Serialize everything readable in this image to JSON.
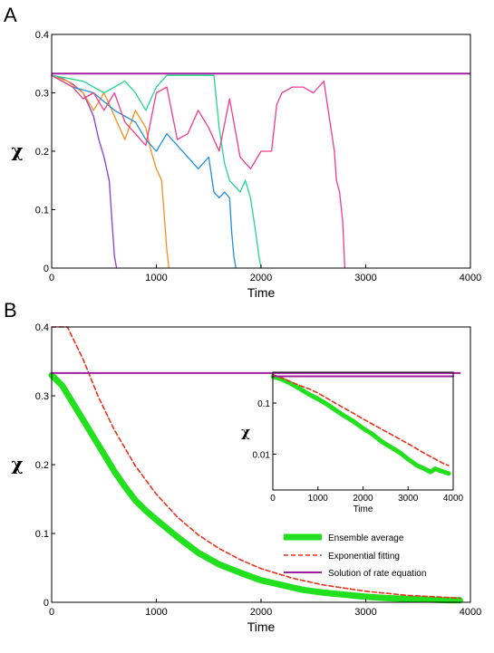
{
  "chart_data": [
    {
      "panel": "A",
      "type": "line",
      "xlabel": "Time",
      "ylabel": "χ",
      "xlim": [
        0,
        4000
      ],
      "ylim": [
        0,
        0.4
      ],
      "xticks": [
        0,
        1000,
        2000,
        3000,
        4000
      ],
      "yticks": [
        0,
        0.1,
        0.2,
        0.3,
        0.4
      ],
      "grid": false,
      "reference_line": {
        "color": "#a020a0",
        "y": 0.333
      },
      "series": [
        {
          "color": "#8a3bd9",
          "x": [
            0,
            100,
            200,
            300,
            400,
            450,
            500,
            550,
            580,
            600,
            620
          ],
          "y": [
            0.33,
            0.325,
            0.315,
            0.3,
            0.26,
            0.22,
            0.19,
            0.15,
            0.07,
            0.02,
            0
          ]
        },
        {
          "color": "#f5901e",
          "x": [
            0,
            150,
            300,
            400,
            500,
            600,
            700,
            800,
            900,
            950,
            1000,
            1050,
            1080,
            1100,
            1120
          ],
          "y": [
            0.33,
            0.32,
            0.3,
            0.27,
            0.3,
            0.26,
            0.22,
            0.27,
            0.24,
            0.2,
            0.17,
            0.15,
            0.08,
            0.03,
            0
          ]
        },
        {
          "color": "#1e90e0",
          "x": [
            0,
            200,
            400,
            600,
            800,
            900,
            1000,
            1100,
            1200,
            1300,
            1400,
            1500,
            1550,
            1600,
            1650,
            1700,
            1720,
            1740,
            1760
          ],
          "y": [
            0.33,
            0.31,
            0.3,
            0.27,
            0.25,
            0.22,
            0.2,
            0.23,
            0.21,
            0.19,
            0.17,
            0.19,
            0.13,
            0.12,
            0.13,
            0.12,
            0.06,
            0.02,
            0
          ]
        },
        {
          "color": "#20d890",
          "x": [
            0,
            300,
            500,
            700,
            800,
            900,
            1000,
            1100,
            1200,
            1300,
            1400,
            1500,
            1550,
            1600,
            1650,
            1700,
            1750,
            1800,
            1850,
            1900,
            1950,
            1980,
            2000
          ],
          "y": [
            0.33,
            0.32,
            0.3,
            0.32,
            0.3,
            0.27,
            0.31,
            0.33,
            0.33,
            0.33,
            0.33,
            0.33,
            0.33,
            0.24,
            0.18,
            0.15,
            0.14,
            0.13,
            0.15,
            0.12,
            0.06,
            0.02,
            0
          ]
        },
        {
          "color": "#f03c8c",
          "x": [
            0,
            200,
            300,
            400,
            500,
            600,
            700,
            800,
            900,
            1000,
            1100,
            1200,
            1300,
            1400,
            1500,
            1600,
            1700,
            1800,
            1900,
            2000,
            2100,
            2150,
            2200,
            2300,
            2400,
            2500,
            2600,
            2650,
            2700,
            2720,
            2750,
            2780,
            2800
          ],
          "y": [
            0.33,
            0.31,
            0.29,
            0.3,
            0.27,
            0.3,
            0.25,
            0.23,
            0.21,
            0.3,
            0.31,
            0.22,
            0.23,
            0.27,
            0.24,
            0.2,
            0.29,
            0.19,
            0.17,
            0.2,
            0.2,
            0.28,
            0.3,
            0.31,
            0.31,
            0.3,
            0.32,
            0.26,
            0.2,
            0.15,
            0.13,
            0.08,
            0
          ]
        }
      ]
    },
    {
      "panel": "B",
      "type": "line",
      "xlabel": "Time",
      "ylabel": "χ",
      "xlim": [
        0,
        4000
      ],
      "ylim": [
        0,
        0.4
      ],
      "xticks": [
        0,
        1000,
        2000,
        3000,
        4000
      ],
      "yticks": [
        0,
        0.1,
        0.2,
        0.3,
        0.4
      ],
      "grid": false,
      "legend_position": "bottom-right",
      "series": [
        {
          "name": "Ensemble average",
          "color": "#22e01e",
          "style": "thick",
          "x": [
            0,
            100,
            200,
            300,
            400,
            500,
            600,
            700,
            800,
            900,
            1000,
            1200,
            1400,
            1600,
            1800,
            2000,
            2200,
            2400,
            2600,
            2800,
            3000,
            3200,
            3400,
            3600,
            3800,
            3900
          ],
          "y": [
            0.33,
            0.315,
            0.29,
            0.265,
            0.24,
            0.215,
            0.19,
            0.168,
            0.148,
            0.133,
            0.12,
            0.095,
            0.072,
            0.055,
            0.043,
            0.032,
            0.025,
            0.018,
            0.014,
            0.011,
            0.008,
            0.006,
            0.005,
            0.004,
            0.003,
            0.003
          ]
        },
        {
          "name": "Exponential fitting",
          "color": "#e8321e",
          "style": "dashed",
          "x": [
            0,
            150,
            300,
            450,
            600,
            800,
            1000,
            1200,
            1400,
            1600,
            1800,
            2000,
            2300,
            2600,
            3000,
            3400,
            3900
          ],
          "y": [
            0.5,
            0.42,
            0.353,
            0.297,
            0.25,
            0.198,
            0.157,
            0.124,
            0.098,
            0.078,
            0.062,
            0.049,
            0.035,
            0.025,
            0.016,
            0.01,
            0.006
          ]
        },
        {
          "name": "Solution of rate equation",
          "color": "#a020a0",
          "style": "solid",
          "x": [
            0,
            3900
          ],
          "y": [
            0.333,
            0.333
          ]
        }
      ],
      "inset": {
        "type": "line",
        "xlabel": "Time",
        "ylabel": "χ",
        "xlim": [
          0,
          4000
        ],
        "ylim": [
          0.002,
          0.4
        ],
        "yscale": "log",
        "xticks": [
          0,
          1000,
          2000,
          3000,
          4000
        ],
        "yticks": [
          0.1,
          0.01
        ],
        "ytick_labels": [
          "0.1",
          "0.01"
        ],
        "series": [
          {
            "color": "#22e01e",
            "style": "thick",
            "x": [
              0,
              200,
              400,
              600,
              800,
              1000,
              1200,
              1400,
              1600,
              1800,
              2000,
              2200,
              2400,
              2600,
              2800,
              3000,
              3200,
              3300,
              3400,
              3500,
              3600,
              3700,
              3800,
              3900
            ],
            "y": [
              0.33,
              0.29,
              0.24,
              0.19,
              0.148,
              0.12,
              0.095,
              0.072,
              0.055,
              0.043,
              0.032,
              0.025,
              0.018,
              0.014,
              0.011,
              0.008,
              0.006,
              0.0055,
              0.005,
              0.0045,
              0.0052,
              0.0048,
              0.0045,
              0.0042
            ]
          },
          {
            "color": "#e8321e",
            "style": "dashed",
            "x": [
              0,
              200,
              400,
              600,
              800,
              1000,
              1200,
              1400,
              1600,
              1800,
              2000,
              2300,
              2600,
              3000,
              3400,
              3800,
              3900
            ],
            "y": [
              0.36,
              0.31,
              0.26,
              0.22,
              0.19,
              0.157,
              0.124,
              0.098,
              0.078,
              0.062,
              0.049,
              0.035,
              0.025,
              0.016,
              0.01,
              0.0065,
              0.006
            ]
          },
          {
            "color": "#a020a0",
            "style": "solid",
            "x": [
              0,
              4000
            ],
            "y": [
              0.333,
              0.333
            ]
          }
        ]
      }
    }
  ]
}
